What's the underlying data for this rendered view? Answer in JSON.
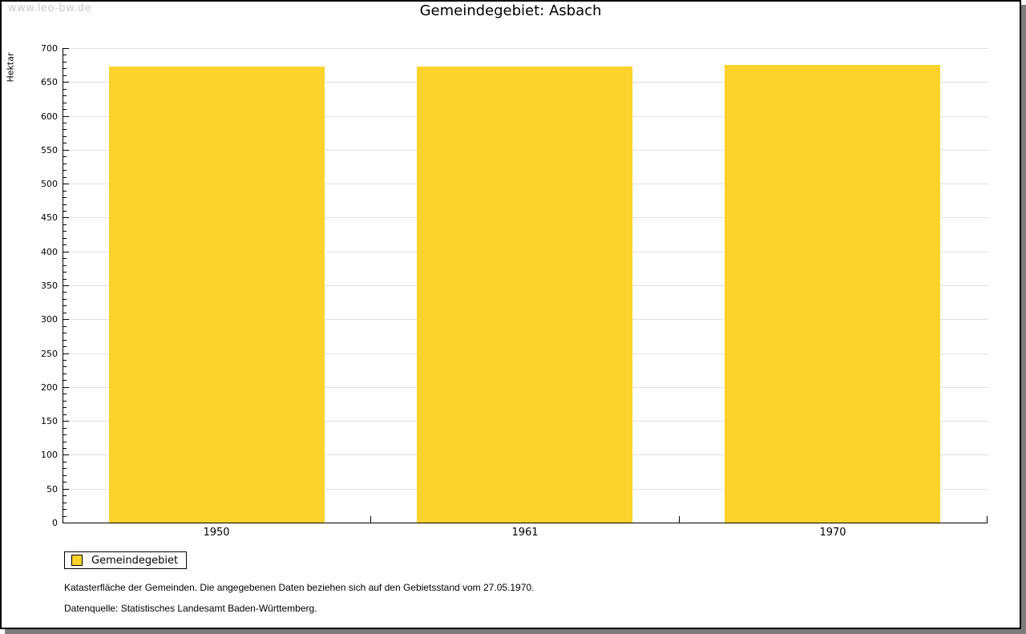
{
  "watermark": "www.leo-bw.de",
  "chart_data": {
    "type": "bar",
    "title": "Gemeindegebiet: Asbach",
    "categories": [
      "1950",
      "1961",
      "1970"
    ],
    "series": [
      {
        "name": "Gemeindegebiet",
        "values": [
          673,
          673,
          675
        ]
      }
    ],
    "xlabel": "",
    "ylabel": "Hektar",
    "ylim": [
      0,
      700
    ],
    "y_major_step": 50,
    "y_minor_step": 10,
    "grid": "horizontal-major-only",
    "legend_position": "bottom-left",
    "bar_color": "#fdd32b"
  },
  "legend": {
    "items": [
      {
        "label": "Gemeindegebiet",
        "color": "#fdd32b"
      }
    ]
  },
  "footnotes": [
    "Katasterfläche der Gemeinden. Die angegebenen Daten beziehen sich auf den Gebietsstand vom 27.05.1970.",
    "Datenquelle: Statistisches Landesamt Baden-Württemberg."
  ],
  "colors": {
    "bar": "#fdd32b",
    "gridline": "#e0e0e0",
    "axis": "#000000",
    "watermark_text": "#c9c9c9",
    "frame_border": "#000000",
    "frame_shadow": "#7d7d7d",
    "background": "#ffffff"
  }
}
